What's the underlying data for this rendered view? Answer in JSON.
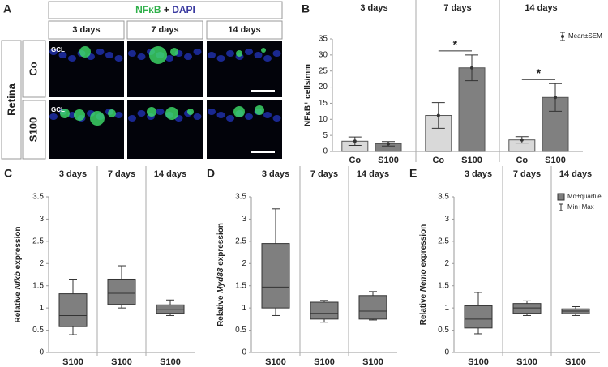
{
  "panel_a": {
    "label": "A",
    "title": {
      "stain1": "NFκB",
      "plus": " + ",
      "stain2": "DAPI"
    },
    "columns": [
      "3 days",
      "7 days",
      "14 days"
    ],
    "side": "Retina",
    "rows": [
      "Co",
      "S100"
    ],
    "layer_label": "GCL"
  },
  "chart_data": [
    {
      "type": "bar",
      "panel": "B",
      "groups": [
        "3 days",
        "7 days",
        "14 days"
      ],
      "categories": [
        "Co",
        "S100",
        "Co",
        "S100",
        "Co",
        "S100"
      ],
      "values": [
        3.2,
        2.4,
        11.2,
        26,
        3.6,
        16.8
      ],
      "errors": [
        1.3,
        0.7,
        4,
        4,
        1,
        4.3
      ],
      "colors": [
        "#d9d9d9",
        "#808080",
        "#d9d9d9",
        "#808080",
        "#d9d9d9",
        "#808080"
      ],
      "ylabel": "NFκB⁺ cells/mm",
      "ylim": [
        0,
        35
      ],
      "yticks": [
        0,
        5,
        10,
        15,
        20,
        25,
        30,
        35
      ],
      "legend": "Mean±SEM",
      "significance": [
        {
          "group": "7 days",
          "label": "*"
        },
        {
          "group": "14 days",
          "label": "*"
        }
      ]
    },
    {
      "type": "box",
      "panel": "C",
      "groups": [
        "3 days",
        "7 days",
        "14 days"
      ],
      "categories": [
        "S100",
        "S100",
        "S100"
      ],
      "boxes": [
        {
          "min": 0.4,
          "q1": 0.58,
          "median": 0.83,
          "q3": 1.32,
          "max": 1.65
        },
        {
          "min": 1.0,
          "q1": 1.08,
          "median": 1.33,
          "q3": 1.65,
          "max": 1.95
        },
        {
          "min": 0.83,
          "q1": 0.88,
          "median": 0.97,
          "q3": 1.07,
          "max": 1.18
        }
      ],
      "ylabel": {
        "before": "Relative ",
        "gene": "Nfkb",
        "after": " expression"
      },
      "ylim": [
        0,
        3.5
      ],
      "yticks": [
        0,
        0.5,
        1,
        1.5,
        2,
        2.5,
        3,
        3.5
      ],
      "color": "#7f7f7f"
    },
    {
      "type": "box",
      "panel": "D",
      "groups": [
        "3 days",
        "7 days",
        "14 days"
      ],
      "categories": [
        "S100",
        "S100",
        "S100"
      ],
      "boxes": [
        {
          "min": 0.83,
          "q1": 1.0,
          "median": 1.47,
          "q3": 2.45,
          "max": 3.23
        },
        {
          "min": 0.68,
          "q1": 0.75,
          "median": 0.88,
          "q3": 1.13,
          "max": 1.17
        },
        {
          "min": 0.73,
          "q1": 0.75,
          "median": 0.93,
          "q3": 1.28,
          "max": 1.37
        }
      ],
      "ylabel": {
        "before": "Relative ",
        "gene": "Myd88",
        "after": " expression"
      },
      "ylim": [
        0,
        3.5
      ],
      "yticks": [
        0,
        0.5,
        1,
        1.5,
        2,
        2.5,
        3,
        3.5
      ],
      "color": "#7f7f7f"
    },
    {
      "type": "box",
      "panel": "E",
      "groups": [
        "3 days",
        "7 days",
        "14 days"
      ],
      "categories": [
        "S100",
        "S100",
        "S100"
      ],
      "boxes": [
        {
          "min": 0.42,
          "q1": 0.55,
          "median": 0.75,
          "q3": 1.05,
          "max": 1.35
        },
        {
          "min": 0.83,
          "q1": 0.88,
          "median": 1.0,
          "q3": 1.1,
          "max": 1.16
        },
        {
          "min": 0.83,
          "q1": 0.87,
          "median": 0.93,
          "q3": 0.98,
          "max": 1.03
        }
      ],
      "ylabel": {
        "before": "Relative ",
        "gene": "Nemo",
        "after": " expression"
      },
      "ylim": [
        0,
        3.5
      ],
      "yticks": [
        0,
        0.5,
        1,
        1.5,
        2,
        2.5,
        3,
        3.5
      ],
      "color": "#7f7f7f",
      "legend": [
        "Md±quartile",
        "Min+Max"
      ]
    }
  ]
}
